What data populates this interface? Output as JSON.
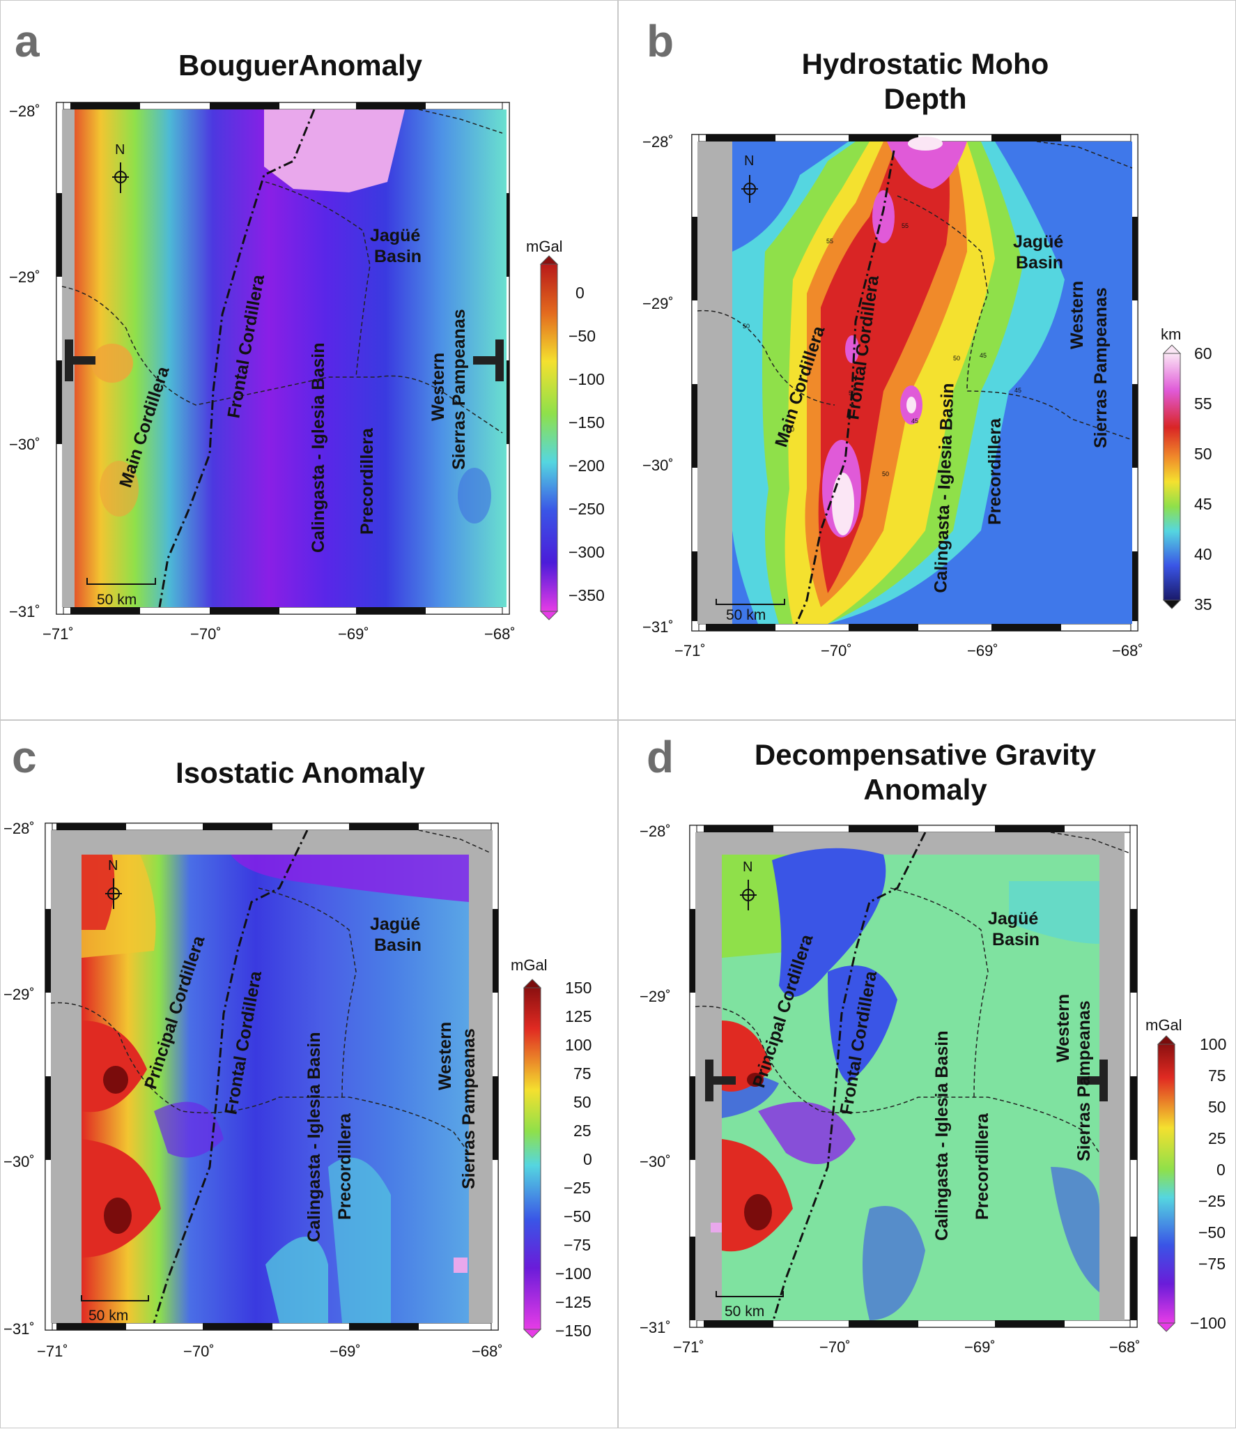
{
  "panels": [
    {
      "letter": "a",
      "title": "BouguerAnomaly",
      "unit": "mGal",
      "colorbar": [
        "0",
        "−50",
        "−100",
        "−150",
        "−200",
        "−250",
        "−300",
        "−350"
      ],
      "lat_ticks": [
        "−28˚",
        "−29˚",
        "−30˚",
        "−31˚"
      ],
      "lon_ticks": [
        "−71˚",
        "−70˚",
        "−69˚",
        "−68˚"
      ],
      "labels": {
        "main_cordillera": "Main Cordillera",
        "frontal_cordillera": "Frontal Cordillera",
        "calingasta": "Calingasta - Iglesia Basin",
        "precordillera": "Precordillera",
        "jague_1": "Jagüé",
        "jague_2": "Basin",
        "western": "Western",
        "sierras": "Sierras Pampeanas"
      },
      "scale": "50 km",
      "north": "N"
    },
    {
      "letter": "b",
      "title_1": "Hydrostatic Moho",
      "title_2": "Depth",
      "unit": "km",
      "colorbar": [
        "60",
        "55",
        "50",
        "45",
        "40",
        "35"
      ],
      "contour_labels": [
        "55",
        "55",
        "50",
        "45",
        "45",
        "50",
        "45",
        "55",
        "50",
        "50"
      ],
      "lat_ticks": [
        "−28˚",
        "−29˚",
        "−30˚",
        "−31˚"
      ],
      "lon_ticks": [
        "−71˚",
        "−70˚",
        "−69˚",
        "−68˚"
      ],
      "labels": {
        "main_cordillera": "Main Cordillera",
        "frontal_cordillera": "Frontal Cordillera",
        "calingasta": "Calingasta - Iglesia Basin",
        "precordillera": "Precordillera",
        "jague_1": "Jagüé",
        "jague_2": "Basin",
        "western": "Western",
        "sierras": "Sierras Pampeanas"
      },
      "scale": "50 km",
      "north": "N"
    },
    {
      "letter": "c",
      "title": "Isostatic Anomaly",
      "unit": "mGal",
      "colorbar": [
        "150",
        "125",
        "100",
        "75",
        "50",
        "25",
        "0",
        "−25",
        "−50",
        "−75",
        "−100",
        "−125",
        "−150"
      ],
      "lat_ticks": [
        "−28˚",
        "−29˚",
        "−30˚",
        "−31˚"
      ],
      "lon_ticks": [
        "−71˚",
        "−70˚",
        "−69˚",
        "−68˚"
      ],
      "labels": {
        "principal_cordillera": "Principal Cordillera",
        "frontal_cordillera": "Frontal Cordillera",
        "calingasta": "Calingasta - Iglesia Basin",
        "precordillera": "Precordillera",
        "jague_1": "Jagüé",
        "jague_2": "Basin",
        "western": "Western",
        "sierras": "Sierras Pampeanas"
      },
      "scale": "50 km",
      "north": "N"
    },
    {
      "letter": "d",
      "title_1": "Decompensative Gravity",
      "title_2": "Anomaly",
      "unit": "mGal",
      "colorbar": [
        "100",
        "75",
        "50",
        "25",
        "0",
        "−25",
        "−50",
        "−75",
        "−100"
      ],
      "lat_ticks": [
        "−28˚",
        "−29˚",
        "−30˚",
        "−31˚"
      ],
      "lon_ticks": [
        "−71˚",
        "−70˚",
        "−69˚",
        "−68˚"
      ],
      "labels": {
        "principal_cordillera": "Principal Cordillera",
        "frontal_cordillera": "Frontal Cordillera",
        "calingasta": "Calingasta - Iglesia Basin",
        "precordillera": "Precordillera",
        "jague_1": "Jagüé",
        "jague_2": "Basin",
        "western": "Western",
        "sierras": "Sierras Pampeanas"
      },
      "scale": "50 km",
      "north": "N"
    }
  ]
}
